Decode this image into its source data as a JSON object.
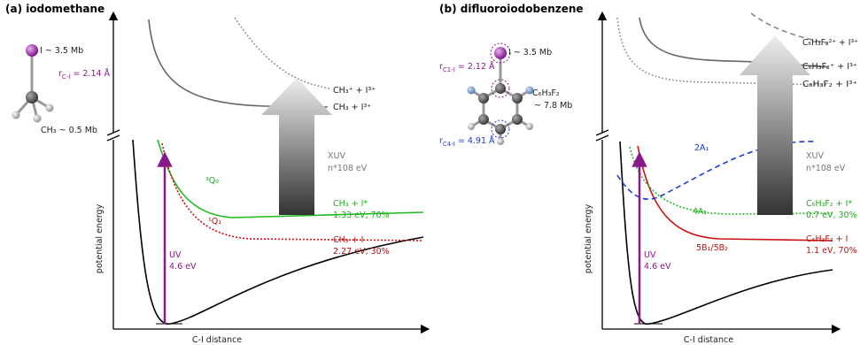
{
  "panels": [
    {
      "title": "(a) iodomethane",
      "x_axis": "C-I distance",
      "y_axis": "potential energy",
      "molecule": {
        "iodine": "I ~ 3.5 Mb",
        "bond": [
          "r",
          "C-I",
          " = 2.14 Å"
        ],
        "methyl": "CH₃ ~ 0.5 Mb"
      },
      "upper_states": [
        "CH₃⁺ + I³⁺",
        "CH₃  + I³⁺"
      ],
      "probe": [
        "XUV",
        "n*108 eV"
      ],
      "pump": [
        "UV",
        "4.6 eV"
      ],
      "curve_labels": [
        "³Q₀",
        "¹Q₁"
      ],
      "asymptotes": [
        {
          "products": "CH₃ + I*",
          "energy": "1.33 eV, 70%"
        },
        {
          "products": "CH₃ + I",
          "energy": "2.27 eV, 30%"
        }
      ]
    },
    {
      "title": "(b) difluoroiodobenzene",
      "x_axis": "C-I distance",
      "y_axis": "potential energy",
      "molecule": {
        "iodine": "I ~ 3.5 Mb",
        "bond": [
          "r",
          "C1-I",
          " = 2.12 Å"
        ],
        "ring": [
          "C₆H₃F₂",
          "~ 7.8 Mb"
        ],
        "bond2": [
          "r",
          "C4-I",
          " = 4.91 Å"
        ]
      },
      "upper_states": [
        "C₆H₃F₂²⁺ + I³⁺",
        "C₆H₃F₂⁺ + I³⁺",
        "C₆H₃F₂  + I³⁺"
      ],
      "probe": [
        "XUV",
        "n*108 eV"
      ],
      "pump": [
        "UV",
        "4.6 eV"
      ],
      "curve_labels": [
        "2A₁",
        "4A₁",
        "5B₁/5B₂"
      ],
      "asymptotes": [
        {
          "products": "C₆H₃F₂ + I*",
          "energy": "0.7 eV, 30%"
        },
        {
          "products": "C₆H₃F₂ + I",
          "energy": "1.1 eV, 70%"
        }
      ]
    }
  ]
}
